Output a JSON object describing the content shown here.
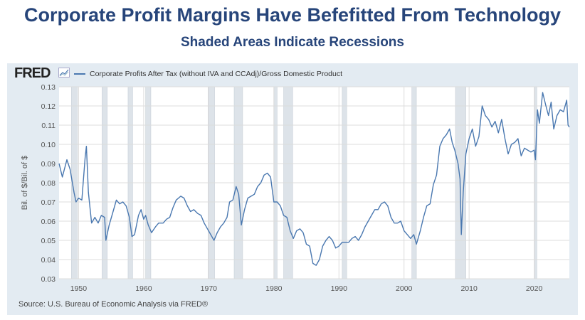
{
  "header": {
    "title": "Corporate Profit Margins Have Befefitted From Technology",
    "subtitle": "Shaded Areas Indicate Recessions"
  },
  "brand": {
    "logo": "FRED",
    "icon": "line-chart-icon"
  },
  "source": "Source: U.S. Bureau of Economic Analysis via FRED®",
  "colors": {
    "line": "#4a78b0",
    "recession": "#dde3e9",
    "panel": "#e3ebf2",
    "title": "#27457a"
  },
  "chart_data": {
    "type": "line",
    "ylabel": "Bil. of $/Bil. of $",
    "ylim": [
      0.03,
      0.13
    ],
    "xlim": [
      1947,
      2025.4
    ],
    "yticks": [
      "0.13",
      "0.12",
      "0.11",
      "0.10",
      "0.09",
      "0.08",
      "0.07",
      "0.06",
      "0.05",
      "0.04",
      "0.03"
    ],
    "xticks": [
      "1950",
      "1960",
      "1970",
      "1980",
      "1990",
      "2000",
      "2010",
      "2020"
    ],
    "grid": true,
    "legend_position": "top-left",
    "recessions": [
      [
        1948.9,
        1949.8
      ],
      [
        1953.6,
        1954.4
      ],
      [
        1957.6,
        1958.3
      ],
      [
        1960.3,
        1961.1
      ],
      [
        1969.9,
        1970.9
      ],
      [
        1973.9,
        1975.2
      ],
      [
        1980.0,
        1980.5
      ],
      [
        1981.5,
        1982.9
      ],
      [
        1990.5,
        1991.2
      ],
      [
        2001.2,
        2001.9
      ],
      [
        2007.9,
        2009.5
      ],
      [
        2020.1,
        2020.4
      ]
    ],
    "series": [
      {
        "name": "Corporate Profits After Tax (without IVA and CCAdj)/Gross Domestic Product",
        "x": [
          1947,
          1947.5,
          1948.2,
          1948.7,
          1949.3,
          1949.6,
          1950,
          1950.5,
          1951,
          1951.2,
          1951.5,
          1952,
          1952.5,
          1953,
          1953.5,
          1954,
          1954.2,
          1954.7,
          1955.3,
          1955.8,
          1956.3,
          1956.8,
          1957.3,
          1957.8,
          1958.2,
          1958.6,
          1959.2,
          1959.6,
          1960,
          1960.3,
          1960.7,
          1961.2,
          1961.8,
          1962.3,
          1963,
          1963.5,
          1964,
          1964.5,
          1965,
          1965.7,
          1966.2,
          1966.7,
          1967.2,
          1967.7,
          1968.3,
          1968.8,
          1969.3,
          1969.8,
          1970.3,
          1970.8,
          1971.3,
          1971.8,
          1972.3,
          1972.8,
          1973.2,
          1973.7,
          1974.2,
          1974.6,
          1975,
          1975.5,
          1976,
          1976.5,
          1977,
          1977.5,
          1978,
          1978.5,
          1979,
          1979.5,
          1980,
          1980.5,
          1981,
          1981.5,
          1982,
          1982.5,
          1983,
          1983.5,
          1984,
          1984.5,
          1985,
          1985.5,
          1986,
          1986.5,
          1987,
          1987.5,
          1988,
          1988.5,
          1989,
          1989.5,
          1990,
          1990.5,
          1991,
          1991.5,
          1992,
          1992.5,
          1993,
          1993.5,
          1994,
          1994.5,
          1995,
          1995.5,
          1996,
          1996.5,
          1997,
          1997.5,
          1998,
          1998.5,
          1999,
          1999.5,
          2000,
          2000.5,
          2001,
          2001.5,
          2001.9,
          2002.5,
          2003,
          2003.5,
          2004,
          2004.5,
          2005,
          2005.5,
          2006,
          2006.5,
          2007,
          2007.4,
          2007.8,
          2008.3,
          2008.6,
          2008.8,
          2009.1,
          2009.5,
          2010,
          2010.5,
          2011,
          2011.5,
          2012,
          2012.5,
          2013,
          2013.5,
          2014,
          2014.5,
          2015,
          2015.5,
          2016,
          2016.5,
          2017,
          2017.5,
          2018,
          2018.5,
          2019,
          2019.5,
          2020,
          2020.2,
          2020.5,
          2020.8,
          2021.3,
          2021.8,
          2022.2,
          2022.6,
          2023,
          2023.5,
          2024,
          2024.5,
          2025,
          2025.2,
          2025.4
        ],
        "y": [
          0.09,
          0.083,
          0.092,
          0.087,
          0.075,
          0.07,
          0.072,
          0.071,
          0.093,
          0.099,
          0.075,
          0.059,
          0.062,
          0.059,
          0.063,
          0.062,
          0.05,
          0.058,
          0.065,
          0.071,
          0.069,
          0.07,
          0.068,
          0.062,
          0.052,
          0.053,
          0.063,
          0.066,
          0.061,
          0.063,
          0.058,
          0.054,
          0.057,
          0.059,
          0.059,
          0.061,
          0.062,
          0.067,
          0.071,
          0.073,
          0.072,
          0.068,
          0.065,
          0.066,
          0.064,
          0.063,
          0.059,
          0.056,
          0.053,
          0.05,
          0.054,
          0.057,
          0.059,
          0.062,
          0.07,
          0.071,
          0.078,
          0.074,
          0.058,
          0.066,
          0.072,
          0.073,
          0.074,
          0.078,
          0.08,
          0.084,
          0.085,
          0.083,
          0.07,
          0.07,
          0.068,
          0.063,
          0.062,
          0.055,
          0.051,
          0.055,
          0.056,
          0.054,
          0.048,
          0.047,
          0.038,
          0.037,
          0.04,
          0.047,
          0.05,
          0.052,
          0.05,
          0.046,
          0.047,
          0.049,
          0.049,
          0.049,
          0.051,
          0.052,
          0.05,
          0.053,
          0.057,
          0.06,
          0.063,
          0.066,
          0.066,
          0.069,
          0.07,
          0.068,
          0.062,
          0.059,
          0.059,
          0.06,
          0.055,
          0.053,
          0.051,
          0.053,
          0.048,
          0.055,
          0.062,
          0.068,
          0.069,
          0.079,
          0.084,
          0.099,
          0.103,
          0.105,
          0.108,
          0.101,
          0.097,
          0.09,
          0.082,
          0.053,
          0.075,
          0.095,
          0.103,
          0.108,
          0.099,
          0.104,
          0.12,
          0.115,
          0.113,
          0.109,
          0.112,
          0.106,
          0.113,
          0.103,
          0.095,
          0.1,
          0.101,
          0.103,
          0.094,
          0.098,
          0.097,
          0.096,
          0.097,
          0.092,
          0.118,
          0.111,
          0.127,
          0.12,
          0.115,
          0.122,
          0.108,
          0.115,
          0.118,
          0.117,
          0.123,
          0.11,
          0.109
        ]
      }
    ]
  }
}
